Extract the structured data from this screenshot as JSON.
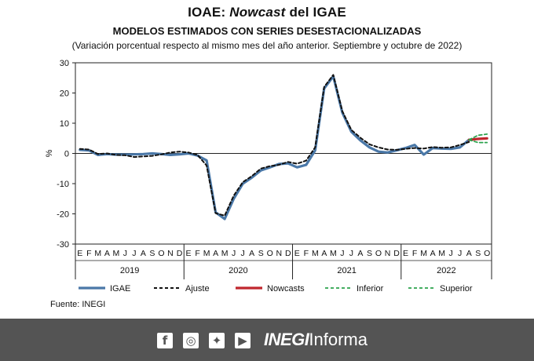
{
  "header": {
    "title_part1": "IOAE: ",
    "title_italic": "Nowcast",
    "title_part2": " del IGAE",
    "subtitle": "Modelos estimados con series desestacionalizadas",
    "note": "(Variación porcentual respecto al mismo mes del año anterior. Septiembre y octubre de 2022)"
  },
  "chart_data": {
    "type": "line",
    "title": "IOAE: Nowcast del IGAE",
    "ylabel": "%",
    "ylim": [
      -30,
      30
    ],
    "yticks": [
      -30,
      -20,
      -10,
      0,
      10,
      20,
      30
    ],
    "grid": false,
    "legend_position": "bottom",
    "months": [
      "E",
      "F",
      "M",
      "A",
      "M",
      "J",
      "J",
      "A",
      "S",
      "O",
      "N",
      "D",
      "E",
      "F",
      "M",
      "A",
      "M",
      "J",
      "J",
      "A",
      "S",
      "O",
      "N",
      "D",
      "E",
      "F",
      "M",
      "A",
      "M",
      "J",
      "J",
      "A",
      "S",
      "O",
      "N",
      "D",
      "E",
      "F",
      "M",
      "A",
      "M",
      "J",
      "J",
      "A",
      "S",
      "O"
    ],
    "years": [
      {
        "label": "2019",
        "start": 0,
        "end": 11
      },
      {
        "label": "2020",
        "start": 12,
        "end": 23
      },
      {
        "label": "2021",
        "start": 24,
        "end": 35
      },
      {
        "label": "2022",
        "start": 36,
        "end": 45
      }
    ],
    "series": [
      {
        "name": "IGAE",
        "color": "#4a78a8",
        "style": "solid",
        "width": 3.2,
        "start": 0,
        "values": [
          1.2,
          1.0,
          -0.5,
          -0.2,
          -0.4,
          -0.4,
          -0.3,
          -0.2,
          0.0,
          -0.2,
          -0.5,
          -0.3,
          0.0,
          -0.7,
          -2.3,
          -19.5,
          -21.7,
          -15.0,
          -10.0,
          -8.0,
          -5.6,
          -4.6,
          -3.5,
          -3.3,
          -4.6,
          -3.8,
          1.0,
          21.5,
          25.5,
          13.5,
          7.2,
          4.3,
          2.0,
          0.6,
          0.3,
          1.0,
          1.8,
          2.8,
          -0.4,
          1.8,
          1.6,
          1.5,
          2.0,
          4.5
        ]
      },
      {
        "name": "Ajuste",
        "color": "#111111",
        "style": "dashed",
        "width": 2,
        "start": 0,
        "values": [
          1.5,
          1.3,
          -0.2,
          0.0,
          -0.5,
          -0.6,
          -1.2,
          -1.0,
          -0.8,
          -0.3,
          0.3,
          0.6,
          0.3,
          -0.5,
          -4.0,
          -19.8,
          -20.6,
          -14.0,
          -9.5,
          -7.5,
          -5.0,
          -4.2,
          -3.8,
          -2.8,
          -3.4,
          -2.4,
          2.0,
          22.0,
          26.0,
          14.0,
          7.8,
          5.2,
          3.0,
          2.0,
          1.3,
          1.2,
          1.5,
          1.8,
          1.6,
          2.1,
          1.9,
          2.0,
          2.8,
          3.8
        ]
      },
      {
        "name": "Nowcasts",
        "color": "#c0262d",
        "style": "solid",
        "width": 3.2,
        "start": 43,
        "values": [
          4.5,
          4.8,
          5.0
        ]
      },
      {
        "name": "Inferior",
        "color": "#2ba24c",
        "style": "dashed",
        "width": 1.8,
        "start": 43,
        "values": [
          4.5,
          3.6,
          3.6
        ]
      },
      {
        "name": "Superior",
        "color": "#2ba24c",
        "style": "dashed",
        "width": 1.8,
        "start": 43,
        "values": [
          4.5,
          6.0,
          6.4
        ]
      }
    ]
  },
  "source": "Fuente: INEGI",
  "footer": {
    "social": [
      {
        "name": "facebook-icon",
        "glyph": "f"
      },
      {
        "name": "instagram-icon",
        "glyph": "◎"
      },
      {
        "name": "twitter-icon",
        "glyph": "✦"
      },
      {
        "name": "youtube-icon",
        "glyph": "▶"
      }
    ],
    "brand_bold": "INEGI",
    "brand_light": "Informa"
  }
}
